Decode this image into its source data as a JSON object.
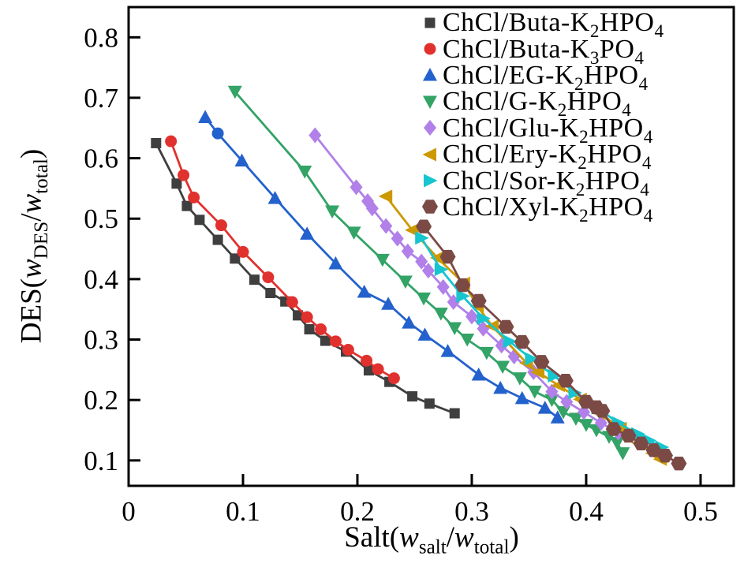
{
  "figure": {
    "background": "#ffffff",
    "axis_color": "#000000"
  },
  "chart_data": {
    "type": "scatter",
    "title": "",
    "grid": false,
    "legend_position": "top-right-inside",
    "xlabel_text": "Salt(w_salt/w_total)",
    "ylabel_text": "DES(w_DES/w_total)",
    "xlabel_segments": [
      {
        "t": "Salt("
      },
      {
        "i": "w"
      },
      {
        "s": "salt"
      },
      {
        "t": "/"
      },
      {
        "i": "w"
      },
      {
        "s": "total"
      },
      {
        "t": ")"
      }
    ],
    "ylabel_segments": [
      {
        "t": "DES("
      },
      {
        "i": "w"
      },
      {
        "s": "DES"
      },
      {
        "t": "/"
      },
      {
        "i": "w"
      },
      {
        "s": "total"
      },
      {
        "t": ")"
      }
    ],
    "xlim": [
      0,
      0.529
    ],
    "ylim": [
      0.058,
      0.85
    ],
    "x_ticks": [
      {
        "v": 0,
        "label": "0"
      },
      {
        "v": 0.1,
        "label": "0.1"
      },
      {
        "v": 0.2,
        "label": "0.2"
      },
      {
        "v": 0.3,
        "label": "0.3"
      },
      {
        "v": 0.4,
        "label": "0.4"
      },
      {
        "v": 0.5,
        "label": "0.5"
      }
    ],
    "y_ticks": [
      {
        "v": 0.1,
        "label": "0.1"
      },
      {
        "v": 0.2,
        "label": "0.2"
      },
      {
        "v": 0.3,
        "label": "0.3"
      },
      {
        "v": 0.4,
        "label": "0.4"
      },
      {
        "v": 0.5,
        "label": "0.5"
      },
      {
        "v": 0.6,
        "label": "0.6"
      },
      {
        "v": 0.7,
        "label": "0.7"
      },
      {
        "v": 0.8,
        "label": "0.8"
      }
    ],
    "series": [
      {
        "name": "ChCl/Buta-K_2_HPO_4_",
        "marker": "square",
        "color": "#3f3f3f",
        "points": [
          [
            0.024,
            0.625
          ],
          [
            0.042,
            0.558
          ],
          [
            0.051,
            0.521
          ],
          [
            0.062,
            0.498
          ],
          [
            0.078,
            0.465
          ],
          [
            0.093,
            0.434
          ],
          [
            0.11,
            0.399
          ],
          [
            0.124,
            0.377
          ],
          [
            0.137,
            0.363
          ],
          [
            0.148,
            0.34
          ],
          [
            0.158,
            0.317
          ],
          [
            0.172,
            0.298
          ],
          [
            0.19,
            0.28
          ],
          [
            0.21,
            0.249
          ],
          [
            0.228,
            0.23
          ],
          [
            0.248,
            0.206
          ],
          [
            0.263,
            0.194
          ],
          [
            0.285,
            0.178
          ]
        ]
      },
      {
        "name": "ChCl/Buta-K_3_PO_4_",
        "marker": "circle",
        "color": "#e0312e",
        "points": [
          [
            0.037,
            0.628
          ],
          [
            0.048,
            0.572
          ],
          [
            0.057,
            0.535
          ],
          [
            0.081,
            0.489
          ],
          [
            0.1,
            0.445
          ],
          [
            0.122,
            0.403
          ],
          [
            0.143,
            0.362
          ],
          [
            0.156,
            0.337
          ],
          [
            0.168,
            0.317
          ],
          [
            0.181,
            0.297
          ],
          [
            0.192,
            0.283
          ],
          [
            0.208,
            0.265
          ],
          [
            0.218,
            0.251
          ],
          [
            0.232,
            0.236
          ]
        ]
      },
      {
        "name": "ChCl/EG-K_2_HPO_4_",
        "marker": "triangle-up",
        "color": "#2361cd",
        "marker_overrides": {
          "1": "circle"
        },
        "points": [
          [
            0.067,
            0.668
          ],
          [
            0.078,
            0.641
          ],
          [
            0.099,
            0.596
          ],
          [
            0.128,
            0.534
          ],
          [
            0.156,
            0.475
          ],
          [
            0.181,
            0.426
          ],
          [
            0.206,
            0.379
          ],
          [
            0.227,
            0.359
          ],
          [
            0.245,
            0.328
          ],
          [
            0.259,
            0.308
          ],
          [
            0.279,
            0.281
          ],
          [
            0.306,
            0.242
          ],
          [
            0.325,
            0.22
          ],
          [
            0.344,
            0.203
          ],
          [
            0.364,
            0.187
          ],
          [
            0.375,
            0.171
          ]
        ]
      },
      {
        "name": "ChCl/G-K_2_HPO_4_",
        "marker": "triangle-down",
        "color": "#33a366",
        "points": [
          [
            0.093,
            0.71
          ],
          [
            0.154,
            0.578
          ],
          [
            0.178,
            0.512
          ],
          [
            0.197,
            0.477
          ],
          [
            0.222,
            0.432
          ],
          [
            0.242,
            0.396
          ],
          [
            0.258,
            0.368
          ],
          [
            0.273,
            0.343
          ],
          [
            0.285,
            0.319
          ],
          [
            0.296,
            0.3
          ],
          [
            0.313,
            0.278
          ],
          [
            0.327,
            0.255
          ],
          [
            0.342,
            0.236
          ],
          [
            0.355,
            0.214
          ],
          [
            0.37,
            0.2
          ],
          [
            0.38,
            0.18
          ],
          [
            0.391,
            0.169
          ],
          [
            0.4,
            0.159
          ],
          [
            0.409,
            0.15
          ],
          [
            0.42,
            0.139
          ],
          [
            0.427,
            0.129
          ],
          [
            0.432,
            0.112
          ]
        ]
      },
      {
        "name": "ChCl/Glu-K_2_HPO_4_",
        "marker": "diamond",
        "color": "#b180e8",
        "points": [
          [
            0.163,
            0.638
          ],
          [
            0.199,
            0.552
          ],
          [
            0.209,
            0.529
          ],
          [
            0.213,
            0.517
          ],
          [
            0.225,
            0.488
          ],
          [
            0.235,
            0.467
          ],
          [
            0.244,
            0.446
          ],
          [
            0.256,
            0.429
          ],
          [
            0.262,
            0.414
          ],
          [
            0.275,
            0.387
          ],
          [
            0.284,
            0.362
          ],
          [
            0.3,
            0.338
          ],
          [
            0.31,
            0.318
          ],
          [
            0.326,
            0.29
          ],
          [
            0.337,
            0.272
          ],
          [
            0.354,
            0.246
          ],
          [
            0.37,
            0.214
          ],
          [
            0.383,
            0.197
          ],
          [
            0.398,
            0.18
          ],
          [
            0.413,
            0.162
          ],
          [
            0.428,
            0.146
          ]
        ]
      },
      {
        "name": "ChCl/Ery-K_2_HPO_4_",
        "marker": "triangle-left",
        "color": "#cc9900",
        "points": [
          [
            0.225,
            0.537
          ],
          [
            0.248,
            0.481
          ],
          [
            0.27,
            0.435
          ],
          [
            0.293,
            0.393
          ],
          [
            0.305,
            0.355
          ],
          [
            0.318,
            0.322
          ],
          [
            0.348,
            0.261
          ],
          [
            0.358,
            0.246
          ],
          [
            0.376,
            0.224
          ],
          [
            0.395,
            0.201
          ],
          [
            0.413,
            0.177
          ],
          [
            0.43,
            0.153
          ],
          [
            0.446,
            0.129
          ],
          [
            0.458,
            0.112
          ],
          [
            0.465,
            0.102
          ]
        ]
      },
      {
        "name": "ChCl/Sor-K_2_HPO_4_",
        "marker": "triangle-right",
        "color": "#16c5ce",
        "points": [
          [
            0.256,
            0.468
          ],
          [
            0.273,
            0.416
          ],
          [
            0.292,
            0.372
          ],
          [
            0.31,
            0.335
          ],
          [
            0.333,
            0.297
          ],
          [
            0.352,
            0.268
          ],
          [
            0.372,
            0.24
          ],
          [
            0.39,
            0.212
          ],
          [
            0.41,
            0.187
          ],
          [
            0.428,
            0.162
          ],
          [
            0.445,
            0.144
          ],
          [
            0.455,
            0.133
          ],
          [
            0.466,
            0.122
          ]
        ]
      },
      {
        "name": "ChCl/Xyl-K_2_HPO_4_",
        "marker": "hexagon",
        "color": "#7b4a45",
        "points": [
          [
            0.258,
            0.487
          ],
          [
            0.279,
            0.437
          ],
          [
            0.292,
            0.39
          ],
          [
            0.306,
            0.364
          ],
          [
            0.33,
            0.321
          ],
          [
            0.344,
            0.296
          ],
          [
            0.361,
            0.263
          ],
          [
            0.382,
            0.232
          ],
          [
            0.4,
            0.197
          ],
          [
            0.409,
            0.188
          ],
          [
            0.414,
            0.182
          ],
          [
            0.424,
            0.152
          ],
          [
            0.437,
            0.141
          ],
          [
            0.448,
            0.128
          ],
          [
            0.459,
            0.117
          ],
          [
            0.469,
            0.108
          ],
          [
            0.481,
            0.095
          ]
        ]
      }
    ]
  }
}
